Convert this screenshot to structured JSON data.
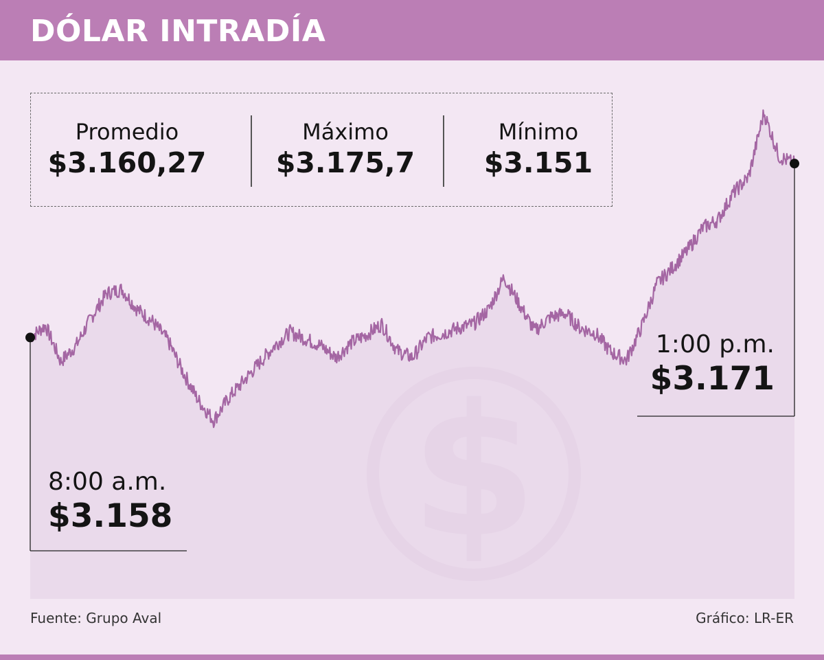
{
  "title": "DÓLAR INTRADÍA",
  "stats": [
    {
      "label": "Promedio",
      "value": "$3.160,27"
    },
    {
      "label": "Máximo",
      "value": "$3.175,7"
    },
    {
      "label": "Mínimo",
      "value": "$3.151"
    }
  ],
  "open": {
    "time": "8:00 a.m.",
    "price": "$3.158"
  },
  "close": {
    "time": "1:00 p.m.",
    "price": "$3.171"
  },
  "footer": {
    "source": "Fuente: Grupo Aval",
    "credit": "Gráfico: LR-ER"
  },
  "icon": "dollar-coin-icon",
  "colors": {
    "band": "#bb7eb5",
    "background": "#f3e7f3",
    "area": "#e8d7e9",
    "line": "#a466a3",
    "coin": "#dcc2dd"
  },
  "chart_data": {
    "type": "area",
    "x_start": "8:00 a.m.",
    "x_end": "1:00 p.m.",
    "ylim": [
      3149.5,
      3176.5
    ],
    "x": [
      0,
      2,
      4,
      6,
      8,
      10,
      12,
      14,
      16,
      18,
      20,
      22,
      24,
      26,
      28,
      30,
      32,
      34,
      36,
      38,
      40,
      42,
      44,
      46,
      48,
      50,
      52,
      54,
      56,
      58,
      60,
      62,
      64,
      66,
      68,
      70,
      72,
      74,
      76,
      78,
      80,
      82,
      84,
      86,
      88,
      90,
      92,
      94,
      96,
      98,
      100
    ],
    "values": [
      3158,
      3158.9,
      3156.2,
      3157.4,
      3159.5,
      3161.3,
      3161.6,
      3160.1,
      3159.2,
      3157.8,
      3155.4,
      3153.3,
      3151.8,
      3153.5,
      3154.8,
      3156.1,
      3157.4,
      3158.4,
      3157.9,
      3157.4,
      3156.5,
      3157.6,
      3158.2,
      3159.0,
      3157.0,
      3156.5,
      3158.0,
      3158.3,
      3158.7,
      3159.0,
      3160.1,
      3162.5,
      3160.5,
      3158.5,
      3159.5,
      3159.8,
      3158.7,
      3158.3,
      3156.9,
      3156.3,
      3158.8,
      3162.0,
      3163.2,
      3164.5,
      3166.2,
      3166.8,
      3168.8,
      3170.0,
      3174.8,
      3171.5,
      3171.0
    ]
  }
}
